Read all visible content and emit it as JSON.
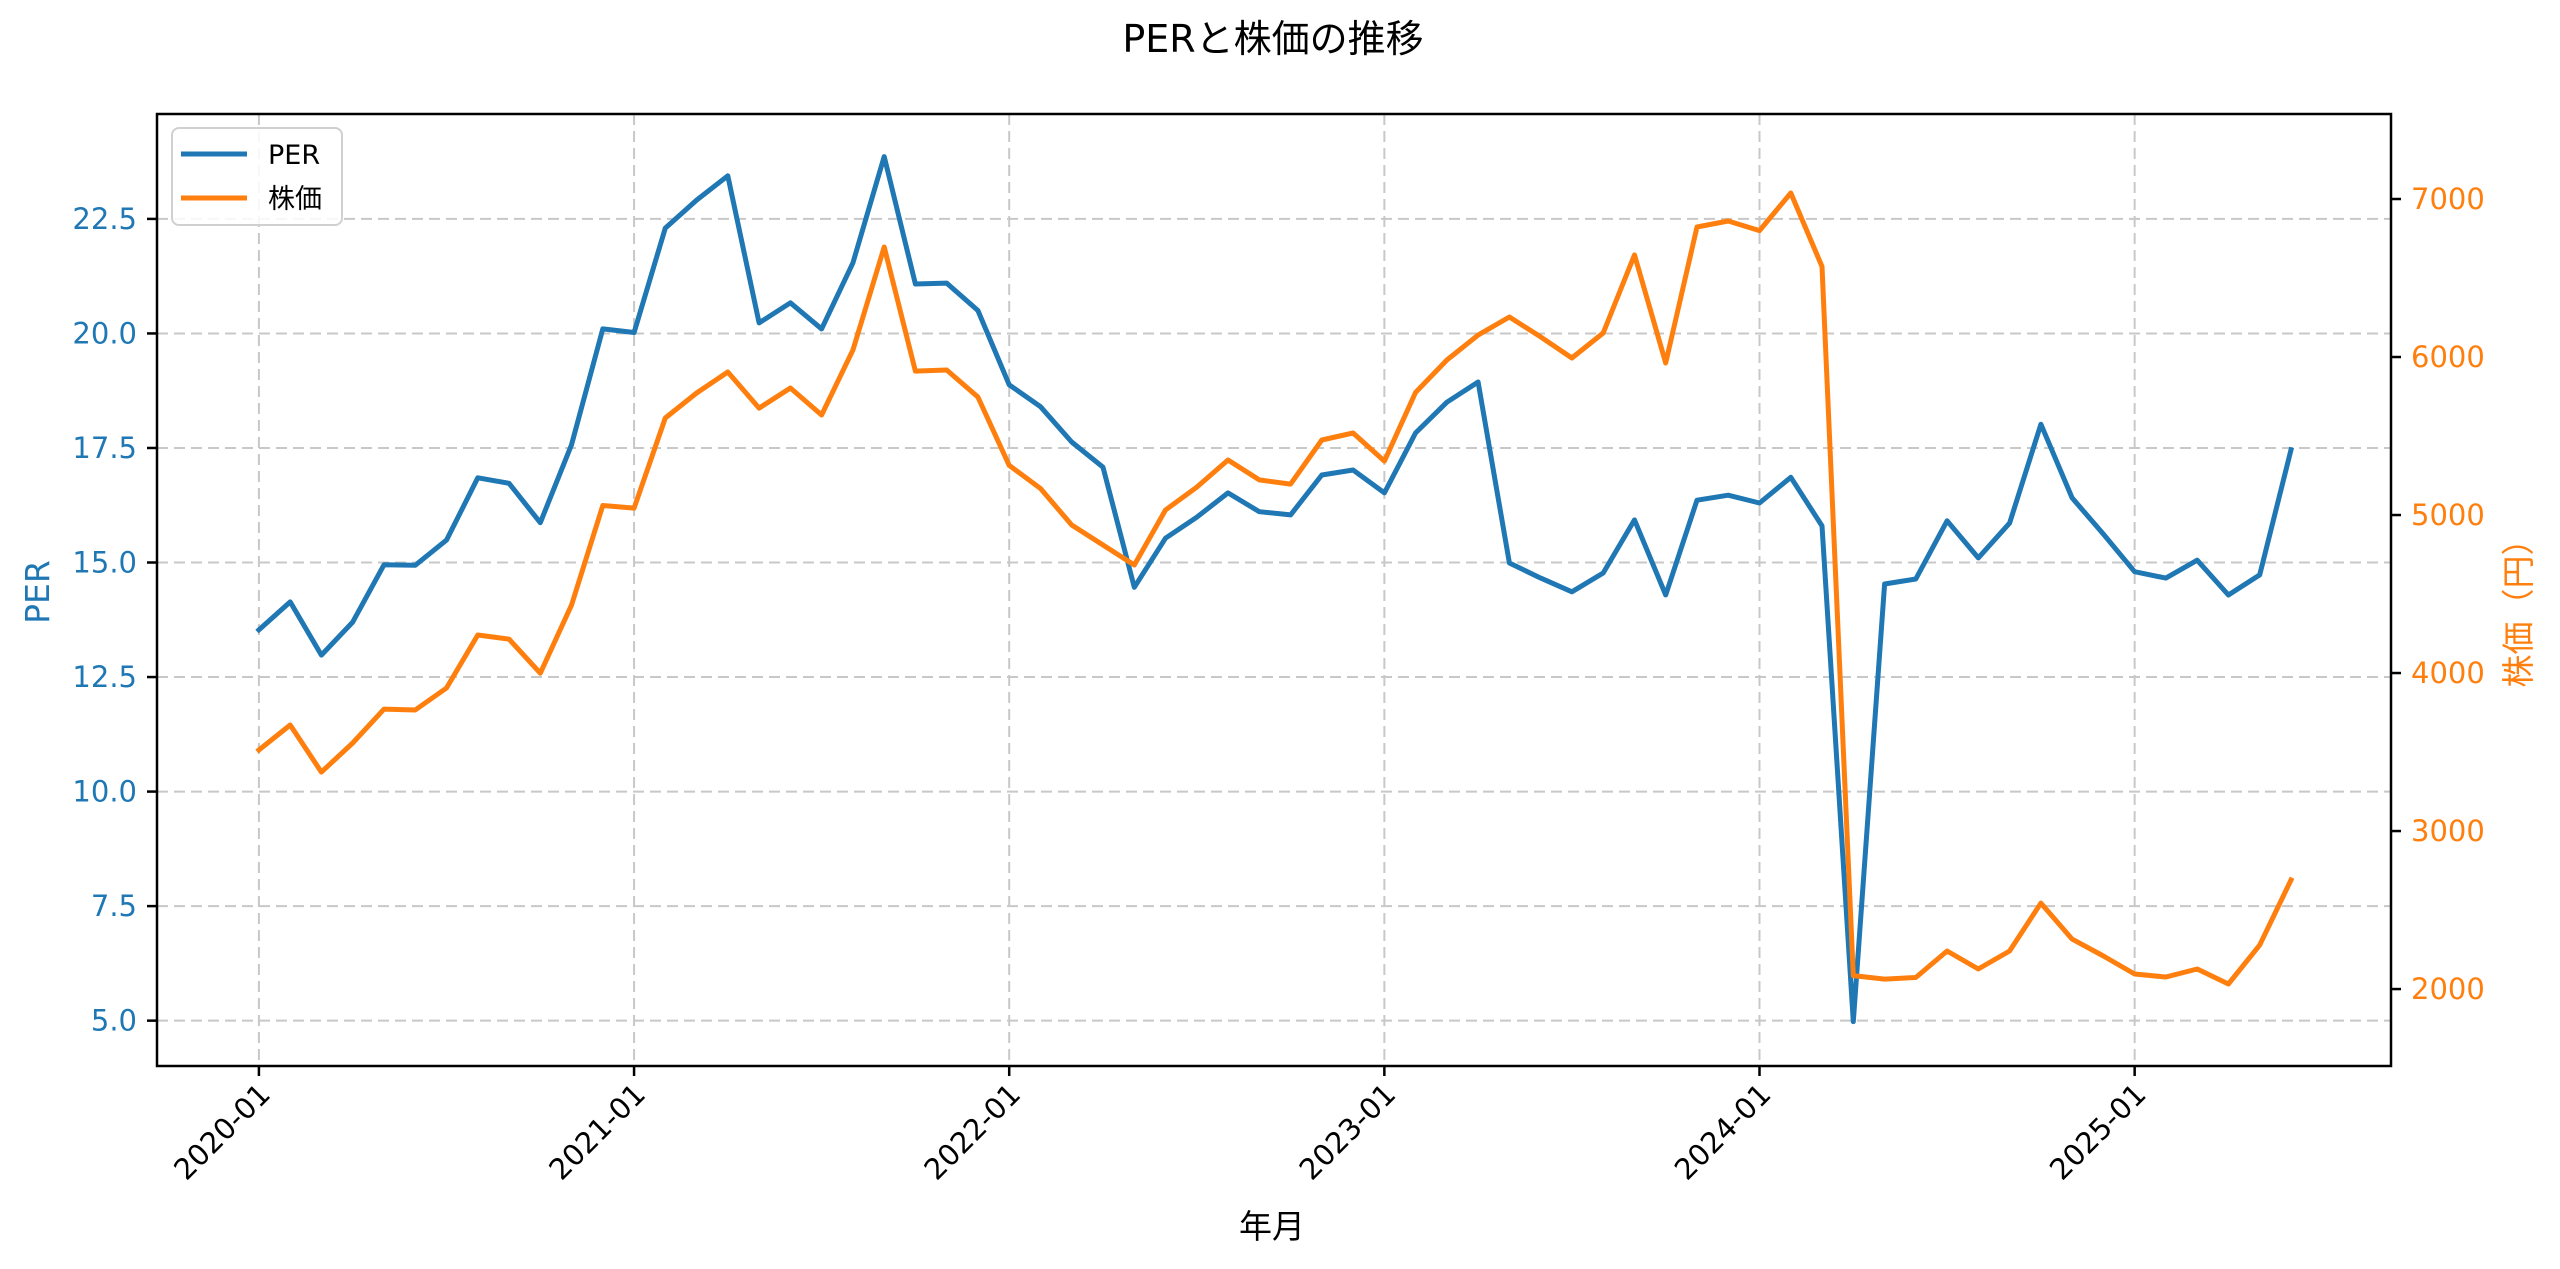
{
  "chart_data": {
    "type": "line",
    "title": "PERと株価の推移",
    "xlabel": "年月",
    "ylabel": "PER",
    "ylabel_right": "株価（円）",
    "x_start": "2020-01",
    "x_tick_labels": [
      "2020-01",
      "2021-01",
      "2022-01",
      "2023-01",
      "2024-01",
      "2025-01"
    ],
    "x_tick_indices": [
      0,
      12,
      24,
      36,
      48,
      60
    ],
    "x": [
      "2020-01",
      "2020-02",
      "2020-03",
      "2020-04",
      "2020-05",
      "2020-06",
      "2020-07",
      "2020-08",
      "2020-09",
      "2020-10",
      "2020-11",
      "2020-12",
      "2021-01",
      "2021-02",
      "2021-03",
      "2021-04",
      "2021-05",
      "2021-06",
      "2021-07",
      "2021-08",
      "2021-09",
      "2021-10",
      "2021-11",
      "2021-12",
      "2022-01",
      "2022-02",
      "2022-03",
      "2022-04",
      "2022-05",
      "2022-06",
      "2022-07",
      "2022-08",
      "2022-09",
      "2022-10",
      "2022-11",
      "2022-12",
      "2023-01",
      "2023-02",
      "2023-03",
      "2023-04",
      "2023-05",
      "2023-06",
      "2023-07",
      "2023-08",
      "2023-09",
      "2023-10",
      "2023-11",
      "2023-12",
      "2024-01",
      "2024-02",
      "2024-03",
      "2024-04",
      "2024-05",
      "2024-06",
      "2024-07",
      "2024-08",
      "2024-09",
      "2024-10",
      "2024-11",
      "2024-12",
      "2025-01",
      "2025-02",
      "2025-03",
      "2025-04",
      "2025-05",
      "2025-06"
    ],
    "series": [
      {
        "name": "PER",
        "axis": "left",
        "color": "#1f77b4",
        "values": [
          13.53,
          14.14,
          12.98,
          13.7,
          14.95,
          14.94,
          15.49,
          16.85,
          16.73,
          15.87,
          17.57,
          20.1,
          20.02,
          22.3,
          22.91,
          23.44,
          20.23,
          20.67,
          20.1,
          21.54,
          23.86,
          21.08,
          21.1,
          20.5,
          18.88,
          18.4,
          17.63,
          17.08,
          14.46,
          15.53,
          15.99,
          16.52,
          16.11,
          16.04,
          16.91,
          17.02,
          16.52,
          17.83,
          18.5,
          18.94,
          14.99,
          14.66,
          14.36,
          14.77,
          15.93,
          14.29,
          16.36,
          16.47,
          16.3,
          16.86,
          15.8,
          4.98,
          14.53,
          14.64,
          15.91,
          15.1,
          15.86,
          18.02,
          16.41,
          15.62,
          14.8,
          14.66,
          15.05,
          14.29,
          14.73,
          17.46
        ]
      },
      {
        "name": "株価",
        "axis": "right",
        "color": "#ff7f0e",
        "values": [
          3513,
          3671,
          3373,
          3557,
          3772,
          3766,
          3905,
          4241,
          4215,
          3999,
          4430,
          5060,
          5044,
          5614,
          5772,
          5905,
          5677,
          5804,
          5633,
          6044,
          6696,
          5911,
          5918,
          5747,
          5314,
          5168,
          4937,
          4810,
          4684,
          5032,
          5177,
          5348,
          5222,
          5196,
          5475,
          5519,
          5341,
          5776,
          5981,
          6139,
          6253,
          6127,
          5994,
          6152,
          6646,
          5962,
          6823,
          6861,
          6800,
          7038,
          6573,
          2085,
          2063,
          2073,
          2241,
          2127,
          2241,
          2544,
          2316,
          2209,
          2095,
          2076,
          2127,
          2032,
          2278,
          2690
        ]
      }
    ],
    "ylim_left": [
      4.01,
      24.79
    ],
    "ylim_right": [
      1513,
      7538
    ],
    "xlim_index": [
      -3.26,
      68.2
    ],
    "yticks_left": [
      5.0,
      7.5,
      10.0,
      12.5,
      15.0,
      17.5,
      20.0,
      22.5
    ],
    "yticks_left_labels": [
      "5.0",
      "7.5",
      "10.0",
      "12.5",
      "15.0",
      "17.5",
      "20.0",
      "22.5"
    ],
    "yticks_right": [
      2000,
      3000,
      4000,
      5000,
      6000,
      7000
    ],
    "yticks_right_labels": [
      "2000",
      "3000",
      "4000",
      "5000",
      "6000",
      "7000"
    ],
    "grid": true,
    "grid_style": "dashed",
    "legend": {
      "position": "upper left",
      "entries": [
        "PER",
        "株価"
      ]
    }
  },
  "colors": {
    "per": "#1f77b4",
    "price": "#ff7f0e",
    "grid": "#c8c8c8",
    "axis": "#000000"
  }
}
